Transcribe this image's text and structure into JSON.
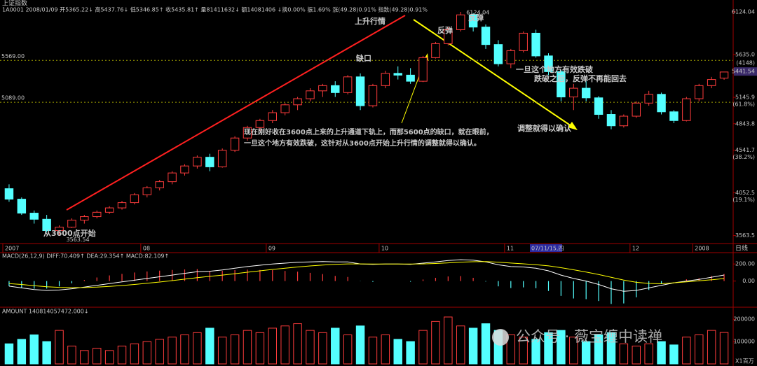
{
  "chart_data": [
    {
      "type": "candlestick",
      "title": "上证指数",
      "subtitle": "1A0001 2008/01/09 开5365.22↓ 高5437.76↓ 低5346.85↑ 收5435.81↑ 量81411632↓ 额14081406 ↓换0.00% 振1.69% 涨(49.28)0.91% 指数(49.28)0.91%",
      "categories": [
        "2007",
        null,
        null,
        null,
        null,
        null,
        null,
        null,
        null,
        null,
        null,
        "08",
        null,
        null,
        null,
        null,
        null,
        null,
        null,
        null,
        null,
        "09",
        null,
        null,
        null,
        null,
        null,
        null,
        null,
        null,
        "10",
        null,
        null,
        null,
        null,
        null,
        null,
        null,
        null,
        null,
        "11",
        null,
        null,
        null,
        null,
        null,
        null,
        null,
        null,
        null,
        "12",
        null,
        null,
        null,
        null,
        "2008",
        null,
        null
      ],
      "open": [
        4100,
        3980,
        3820,
        3750,
        3620,
        3660,
        3740,
        3780,
        3830,
        3880,
        3940,
        4030,
        4110,
        4180,
        4280,
        4360,
        4460,
        4350,
        4540,
        4680,
        4800,
        4880,
        4970,
        5060,
        5130,
        5220,
        5280,
        5200,
        5380,
        5050,
        5280,
        5420,
        5400,
        5330,
        5600,
        5760,
        5920,
        6090,
        5950,
        5750,
        5530,
        5680,
        5880,
        5620,
        5440,
        5150,
        5250,
        5140,
        4950,
        4820,
        4930,
        5080,
        5180,
        4980,
        4880,
        5130,
        5280,
        5365.22
      ],
      "high": [
        4150,
        4000,
        3850,
        3800,
        3680,
        3760,
        3800,
        3850,
        3900,
        3960,
        4050,
        4130,
        4200,
        4300,
        4380,
        4480,
        4500,
        4560,
        4700,
        4820,
        4900,
        5000,
        5080,
        5150,
        5250,
        5300,
        5330,
        5400,
        5420,
        5300,
        5450,
        5500,
        5480,
        5620,
        5780,
        5950,
        6124.04,
        6110,
        5980,
        5800,
        5700,
        5900,
        5920,
        5650,
        5460,
        5300,
        5330,
        5160,
        5000,
        4950,
        5100,
        5220,
        5200,
        5000,
        5150,
        5300,
        5380,
        5437.76
      ],
      "low": [
        3950,
        3800,
        3700,
        3600,
        3563.54,
        3650,
        3700,
        3760,
        3810,
        3860,
        3920,
        4000,
        4080,
        4150,
        4250,
        4330,
        4300,
        4340,
        4520,
        4650,
        4760,
        4850,
        4940,
        5000,
        5100,
        5150,
        5150,
        5180,
        5000,
        5030,
        5250,
        5350,
        5300,
        5320,
        5590,
        5740,
        5900,
        5900,
        5700,
        5500,
        5480,
        5660,
        5600,
        5400,
        5100,
        5000,
        5100,
        4900,
        4780,
        4800,
        4910,
        5050,
        4950,
        4850,
        4870,
        5100,
        5250,
        5346.85
      ],
      "close": [
        3980,
        3820,
        3750,
        3620,
        3660,
        3740,
        3780,
        3830,
        3880,
        3940,
        4030,
        4110,
        4180,
        4280,
        4360,
        4460,
        4350,
        4540,
        4680,
        4800,
        4880,
        4970,
        5060,
        5130,
        5220,
        5280,
        5200,
        5380,
        5050,
        5280,
        5420,
        5400,
        5330,
        5600,
        5760,
        5920,
        6090,
        5950,
        5750,
        5530,
        5680,
        5880,
        5620,
        5440,
        5150,
        5250,
        5140,
        4950,
        4820,
        4930,
        5080,
        5180,
        4980,
        4880,
        5130,
        5280,
        5350,
        5435.81
      ],
      "up_color": "#ff3c3c",
      "down_color": "#54ffff",
      "ylim": [
        3480,
        6220
      ],
      "yticks": [
        6124.04,
        {
          "value": 5635,
          "label": "5635.0"
        },
        5145.9,
        4843.8,
        4541.7,
        4052.5,
        3563.5
      ],
      "ratio_labels": [
        "(61.8%)",
        "(38.2%)",
        "(19.1%)"
      ],
      "hlines": [
        {
          "value": 5569,
          "label": "5569.00"
        },
        {
          "value": 5089,
          "label": "5089.00"
        }
      ],
      "last_price": 5441.54,
      "note": "(4148)",
      "cursor_label": "07/11/15,四",
      "period_label": "日线",
      "annotations": [
        {
          "text": "上升行情",
          "color": "#ffff33"
        },
        {
          "text": "缺口",
          "color": "#ffff33"
        },
        {
          "text": "反弹",
          "color": "#ffaacc"
        },
        {
          "text": "反弹",
          "color": "#ffaacc"
        },
        {
          "text": "一旦这个地方有效跌破",
          "color": "#ffff33"
        },
        {
          "text": "跌破之后，反弹不再能回去",
          "color": "#ffaacc"
        },
        {
          "text": "调整就得以确认",
          "color": "#ffff33"
        },
        {
          "text": "现在刚好收在3600点上来的上升通道下轨上，而那5600点的缺口，就在眼前，",
          "color": "#ffff33"
        },
        {
          "text": "一旦这个地方有效跌破，这针对从3600点开始上升行情的调整就得以确认。",
          "color": "#ffff33"
        },
        {
          "text": "从3600点开始",
          "color": "#ffff33"
        }
      ]
    },
    {
      "type": "macd",
      "title": "MACD(26,12,9) DIFF:70.409↑ DEA:29.354↑ MACD:82.109↑",
      "series": [
        {
          "name": "DIFF",
          "color": "#ffffff",
          "values": [
            -60,
            -80,
            -100,
            -110,
            -105,
            -90,
            -70,
            -50,
            -30,
            -10,
            10,
            30,
            50,
            70,
            90,
            110,
            115,
            130,
            150,
            170,
            185,
            200,
            210,
            220,
            225,
            228,
            225,
            225,
            200,
            195,
            200,
            200,
            195,
            210,
            225,
            240,
            250,
            245,
            225,
            190,
            170,
            165,
            150,
            120,
            70,
            30,
            0,
            -40,
            -90,
            -120,
            -110,
            -80,
            -50,
            -20,
            0,
            20,
            45,
            70.409
          ]
        },
        {
          "name": "DEA",
          "color": "#ffff00",
          "values": [
            -30,
            -40,
            -55,
            -66,
            -74,
            -77,
            -76,
            -71,
            -63,
            -52,
            -40,
            -26,
            -11,
            5,
            22,
            40,
            55,
            70,
            86,
            103,
            120,
            136,
            151,
            165,
            177,
            187,
            195,
            201,
            201,
            200,
            200,
            200,
            199,
            201,
            206,
            213,
            221,
            226,
            228,
            221,
            211,
            202,
            192,
            178,
            157,
            132,
            106,
            77,
            44,
            11,
            -15,
            -28,
            -32,
            -20,
            -10,
            3,
            15,
            29.354
          ]
        }
      ],
      "bars": {
        "name": "MACD",
        "values": [
          -60,
          -80,
          -90,
          -88,
          -62,
          -26,
          12,
          42,
          66,
          84,
          100,
          112,
          122,
          130,
          136,
          140,
          120,
          120,
          128,
          134,
          130,
          128,
          118,
          110,
          96,
          82,
          60,
          48,
          -2,
          -10,
          0,
          0,
          -8,
          18,
          38,
          54,
          58,
          38,
          -6,
          -62,
          -82,
          -74,
          -84,
          -116,
          -174,
          -204,
          -212,
          -234,
          -268,
          -262,
          -190,
          -104,
          -36,
          0,
          20,
          34,
          60,
          82.109
        ]
      },
      "ylim": [
        -290,
        300
      ],
      "yticks": [
        {
          "value": 200,
          "label": "200.00"
        },
        {
          "value": 0,
          "label": "0.00"
        }
      ]
    },
    {
      "type": "volume",
      "title": "AMOUNT 140814057472.000↓",
      "values": [
        90000,
        110000,
        130000,
        100000,
        150000,
        80000,
        60000,
        70000,
        60000,
        80000,
        90000,
        100000,
        110000,
        120000,
        130000,
        140000,
        160000,
        120000,
        130000,
        150000,
        140000,
        160000,
        170000,
        180000,
        150000,
        140000,
        160000,
        130000,
        170000,
        120000,
        130000,
        110000,
        100000,
        150000,
        190000,
        210000,
        170000,
        160000,
        180000,
        150000,
        130000,
        120000,
        110000,
        140000,
        150000,
        120000,
        100000,
        130000,
        140000,
        90000,
        80000,
        90000,
        100000,
        85000,
        120000,
        130000,
        150000,
        140814
      ],
      "ylim": [
        0,
        235000
      ],
      "yticks": [
        200000,
        100000
      ],
      "unit_label": "X1百万"
    }
  ],
  "watermark": "公众号 · 薇宝缠中读禅"
}
